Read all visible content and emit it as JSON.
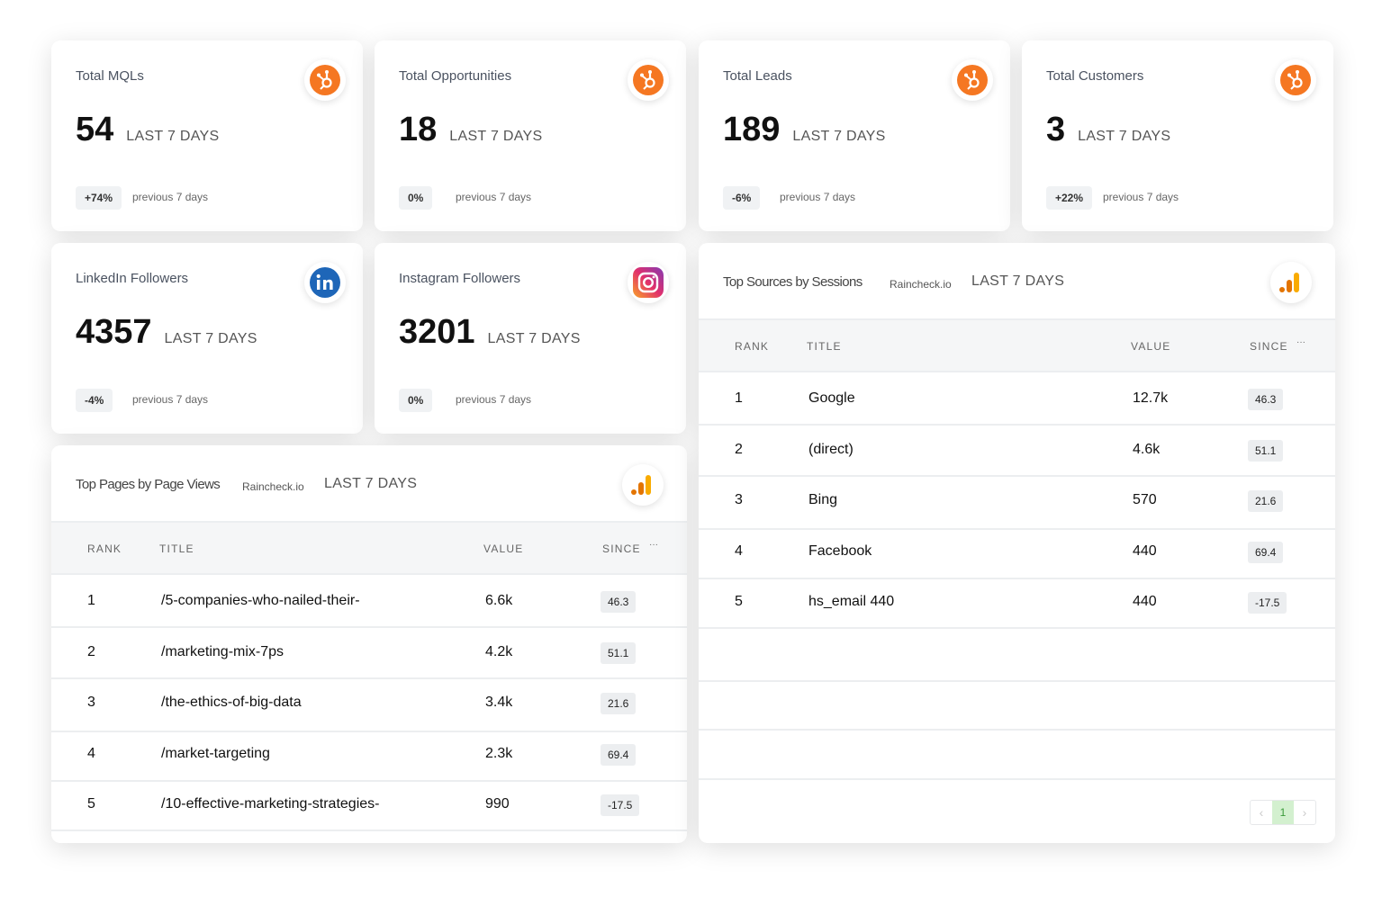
{
  "kpi_cards": [
    {
      "title": "Total MQLs",
      "value": 54,
      "period": "LAST 7 DAYS",
      "change": "+74%",
      "compare": "previous 7 days"
    },
    {
      "title": "Total Opportunities",
      "value": 18,
      "period": "LAST 7 DAYS",
      "change": "0%",
      "compare": "previous 7 days"
    },
    {
      "title": "Total Leads",
      "value": 189,
      "period": "LAST 7 DAYS",
      "change": "-6%",
      "compare": "previous 7 days"
    },
    {
      "title": "Total Customers",
      "value": 3,
      "period": "LAST 7 DAYS",
      "change": "+22%",
      "compare": "previous 7 days"
    },
    {
      "title": "LinkedIn Followers",
      "value": 4357,
      "period": "LAST 7 DAYS",
      "change": "-4%",
      "compare": "previous 7 days"
    },
    {
      "title": "Instagram Followers",
      "value": 3201,
      "period": "LAST 7 DAYS",
      "change": "0%",
      "compare": "previous 7 days"
    }
  ],
  "tables": [
    {
      "title": "Top Pages by Page Views",
      "source": "Raincheck.io",
      "period": "LAST 7 DAYS",
      "columns": [
        "RANK",
        "TITLE",
        "VALUE",
        "SINCE"
      ],
      "rows": [
        [
          1,
          "/5-companies-who-nailed-their-",
          "6.6k",
          46.3
        ],
        [
          2,
          "/marketing-mix-7ps",
          "4.2k",
          51.1
        ],
        [
          3,
          "/the-ethics-of-big-data",
          "3.4k",
          21.6
        ],
        [
          4,
          "/market-targeting",
          "2.3k",
          69.4
        ],
        [
          5,
          "/10-effective-marketing-strategies-",
          "990",
          -17.5
        ]
      ]
    },
    {
      "title": "Top Sources by Sessions",
      "source": "Raincheck.io",
      "period": "LAST 7 DAYS",
      "columns": [
        "RANK",
        "TITLE",
        "VALUE",
        "SINCE"
      ],
      "rows": [
        [
          1,
          "Google",
          "12.7k",
          46.3
        ],
        [
          2,
          "(direct)",
          "4.6k",
          51.1
        ],
        [
          3,
          "Bing",
          "570",
          21.6
        ],
        [
          4,
          "Facebook",
          "440",
          69.4
        ],
        [
          5,
          "hs_email 440",
          "440",
          -17.5
        ]
      ],
      "page": 1
    }
  ]
}
